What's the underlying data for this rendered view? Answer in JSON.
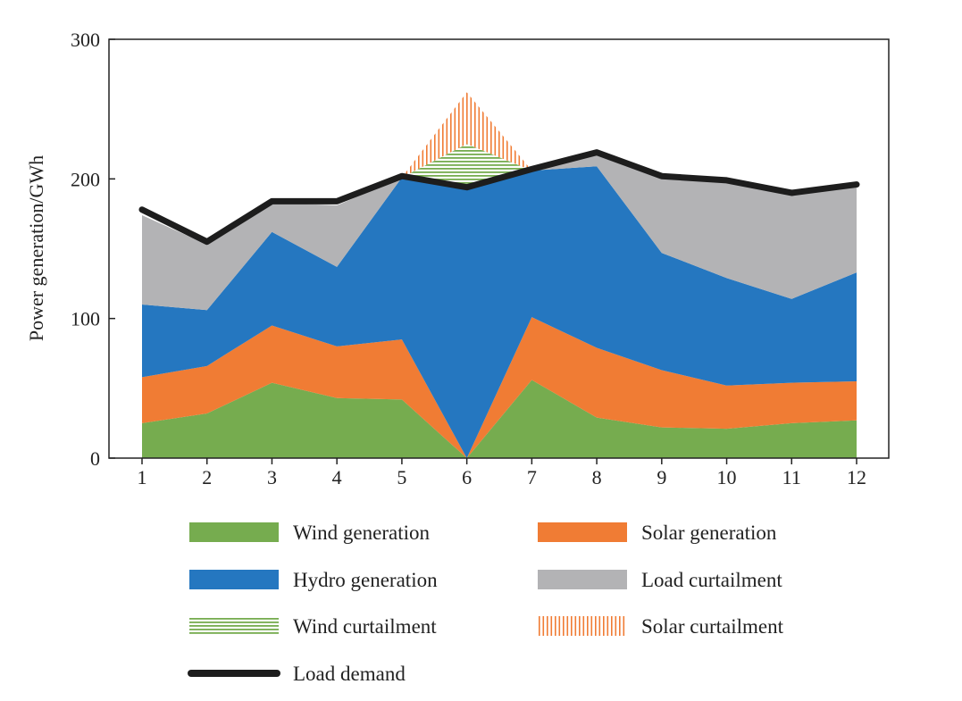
{
  "chart_data": {
    "type": "area",
    "title": "",
    "xlabel": "",
    "ylabel": "Power generation/GWh",
    "ylim": [
      0,
      300
    ],
    "yticks": [
      0,
      100,
      200,
      300
    ],
    "categories": [
      "1",
      "2",
      "3",
      "4",
      "5",
      "6",
      "7",
      "8",
      "9",
      "10",
      "11",
      "12"
    ],
    "series": [
      {
        "key": "wind",
        "name": "Wind generation",
        "color": "#76ac4f",
        "values": [
          25,
          32,
          54,
          43,
          42,
          0,
          56,
          29,
          22,
          21,
          25,
          27
        ]
      },
      {
        "key": "solar",
        "name": "Solar generation",
        "color": "#f07c34",
        "values": [
          33,
          34,
          41,
          37,
          43,
          0,
          45,
          50,
          41,
          31,
          29,
          28
        ]
      },
      {
        "key": "hydro",
        "name": "Hydro generation",
        "color": "#2577c0",
        "values": [
          52,
          40,
          67,
          57,
          116,
          193,
          105,
          130,
          84,
          77,
          60,
          78
        ]
      },
      {
        "key": "load_curtailment",
        "name": "Load curtailment",
        "color": "#b3b3b5",
        "values": [
          64,
          47,
          21,
          44,
          0,
          0,
          0,
          10,
          54,
          70,
          77,
          62
        ]
      },
      {
        "key": "wind_curtailment",
        "name": "Wind curtailment",
        "color": "#76ac4f",
        "pattern": "horizontal-hatch",
        "values": [
          0,
          0,
          0,
          0,
          0,
          32,
          0,
          0,
          0,
          0,
          0,
          0
        ]
      },
      {
        "key": "solar_curtailment",
        "name": "Solar curtailment",
        "color": "#f07c34",
        "pattern": "vertical-hatch",
        "values": [
          0,
          0,
          0,
          0,
          0,
          37,
          0,
          0,
          0,
          0,
          0,
          0
        ]
      }
    ],
    "line": {
      "name": "Load demand",
      "color": "#1d1d1d",
      "values": [
        178,
        155,
        184,
        184,
        202,
        194,
        207,
        219,
        202,
        199,
        190,
        196
      ]
    },
    "legend": {
      "position": "bottom",
      "columns": [
        [
          "Wind generation",
          "Hydro generation",
          "Wind curtailment",
          "Load demand"
        ],
        [
          "Solar generation",
          "Load curtailment",
          "Solar curtailment"
        ]
      ]
    }
  }
}
